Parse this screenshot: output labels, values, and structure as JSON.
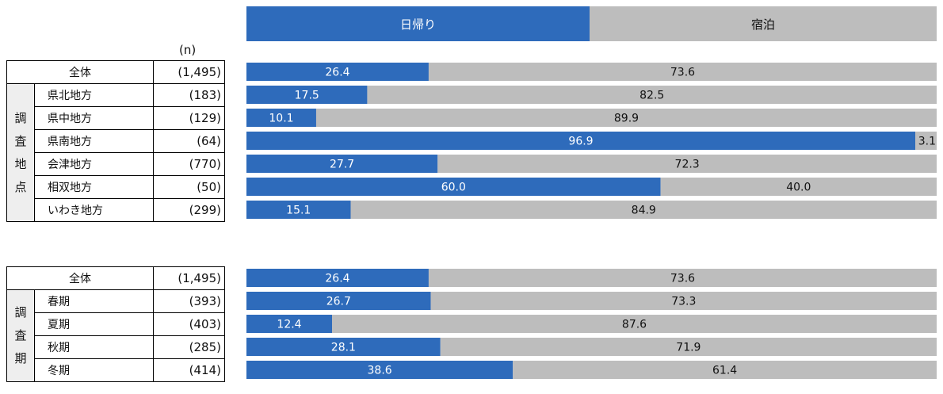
{
  "legend": {
    "blue": "日帰り",
    "gray": "宿泊"
  },
  "n_header": "(n)",
  "colors": {
    "blue": "#2e6bbb",
    "gray": "#bdbdbd",
    "group_bg": "#eeeeee"
  },
  "chart_data": [
    {
      "type": "bar",
      "stacked": true,
      "orientation": "horizontal",
      "percent": true,
      "group_label": [
        "調",
        "査",
        "地",
        "点"
      ],
      "categories": [
        "全体",
        "県北地方",
        "県中地方",
        "県南地方",
        "会津地方",
        "相双地方",
        "いわき地方"
      ],
      "n": [
        "(1,495)",
        "(183)",
        "(129)",
        "(64)",
        "(770)",
        "(50)",
        "(299)"
      ],
      "series": [
        {
          "name": "日帰り",
          "values": [
            26.4,
            17.5,
            10.1,
            96.9,
            27.7,
            60.0,
            15.1
          ]
        },
        {
          "name": "宿泊",
          "values": [
            73.6,
            82.5,
            89.9,
            3.1,
            72.3,
            40.0,
            84.9
          ]
        }
      ]
    },
    {
      "type": "bar",
      "stacked": true,
      "orientation": "horizontal",
      "percent": true,
      "group_label": [
        "調",
        "査",
        "期"
      ],
      "categories": [
        "全体",
        "春期",
        "夏期",
        "秋期",
        "冬期"
      ],
      "n": [
        "(1,495)",
        "(393)",
        "(403)",
        "(285)",
        "(414)"
      ],
      "series": [
        {
          "name": "日帰り",
          "values": [
            26.4,
            26.7,
            12.4,
            28.1,
            38.6
          ]
        },
        {
          "name": "宿泊",
          "values": [
            73.6,
            73.3,
            87.6,
            71.9,
            61.4
          ]
        }
      ]
    }
  ]
}
